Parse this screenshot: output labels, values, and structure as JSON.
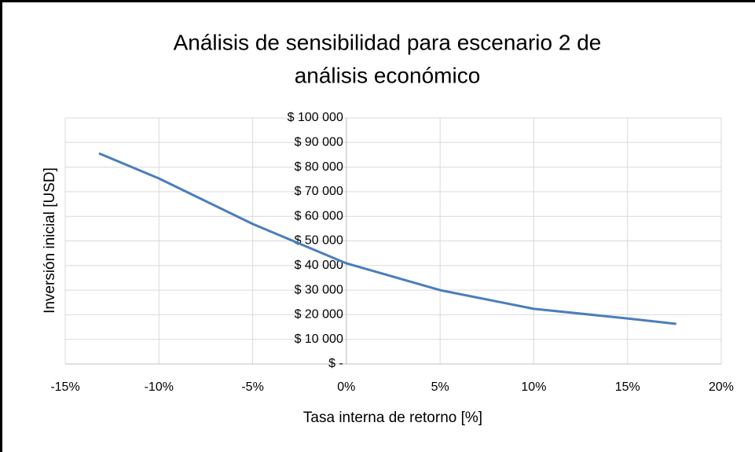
{
  "chart_data": {
    "type": "line",
    "title": [
      "Análisis de sensibilidad para escenario 2 de",
      "análisis económico"
    ],
    "x_label": "Tasa interna de retorno [%]",
    "y_label": "Inversión inicial [USD]",
    "series": [
      {
        "name": "Inversión inicial",
        "color": "#4a7ebb",
        "x": [
          -13.2,
          -10,
          -5,
          0,
          5,
          10,
          15,
          17.6
        ],
        "values": [
          85600,
          75400,
          56900,
          40900,
          30000,
          22400,
          18500,
          16300
        ]
      }
    ],
    "xlim": [
      -15,
      20
    ],
    "xticks": [
      {
        "value": -15,
        "label": "-15%"
      },
      {
        "value": -10,
        "label": "-10%"
      },
      {
        "value": -5,
        "label": "-5%"
      },
      {
        "value": 0,
        "label": "0%"
      },
      {
        "value": 5,
        "label": "5%"
      },
      {
        "value": 10,
        "label": "10%"
      },
      {
        "value": 15,
        "label": "15%"
      },
      {
        "value": 20,
        "label": "20%"
      }
    ],
    "ylim": [
      0,
      100000
    ],
    "yticks": [
      {
        "value": 0,
        "label": "$ -"
      },
      {
        "value": 10000,
        "label": "$ 10 000"
      },
      {
        "value": 20000,
        "label": "$ 20 000"
      },
      {
        "value": 30000,
        "label": "$ 30 000"
      },
      {
        "value": 40000,
        "label": "$ 40 000"
      },
      {
        "value": 50000,
        "label": "$ 50 000"
      },
      {
        "value": 60000,
        "label": "$ 60 000"
      },
      {
        "value": 70000,
        "label": "$ 70 000"
      },
      {
        "value": 80000,
        "label": "$ 80 000"
      },
      {
        "value": 90000,
        "label": "$ 90 000"
      },
      {
        "value": 100000,
        "label": "$ 100 000"
      }
    ],
    "grid": true
  }
}
